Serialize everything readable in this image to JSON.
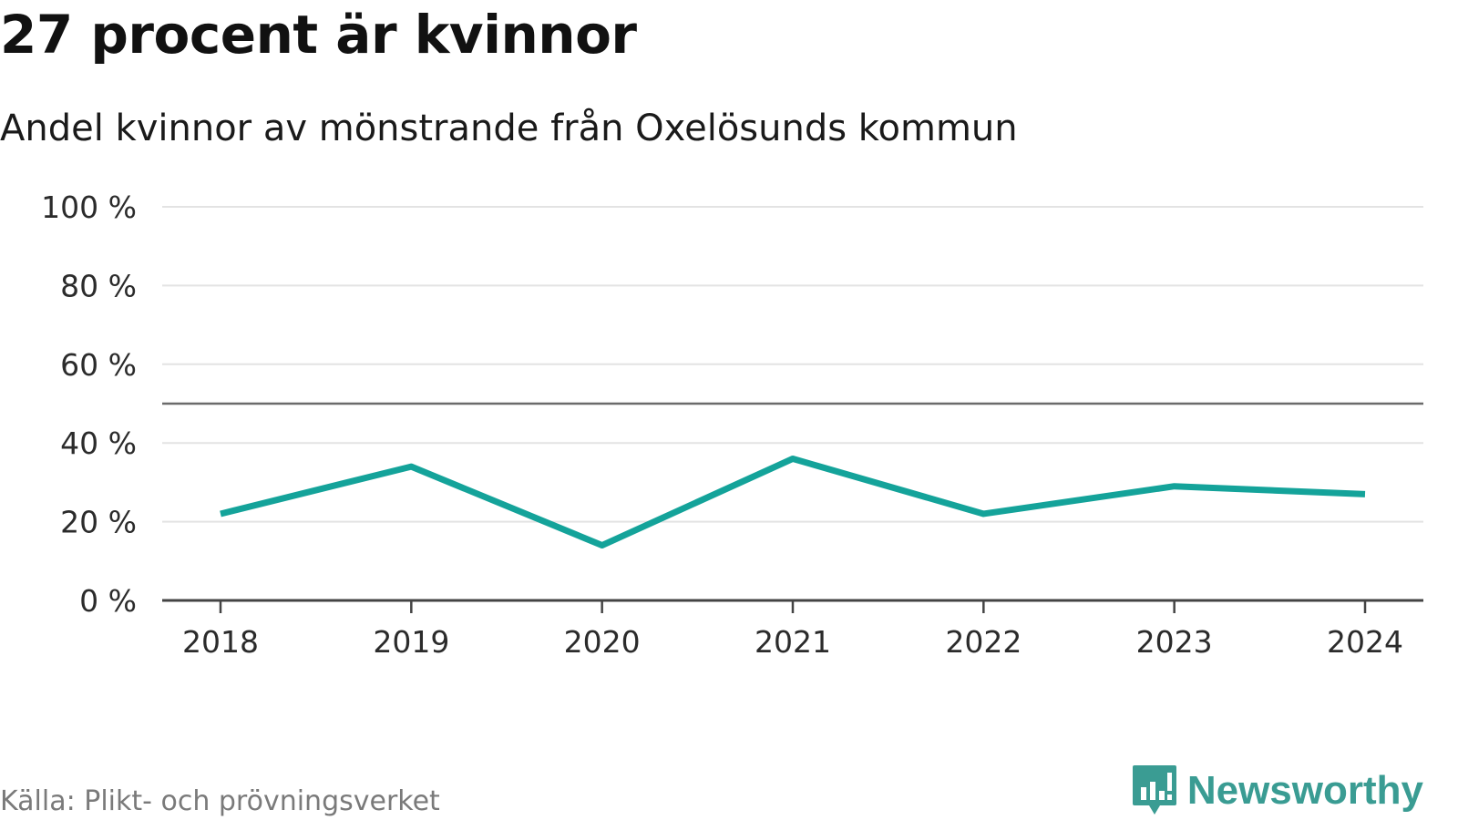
{
  "title": "27 procent är kvinnor",
  "subtitle": "Andel kvinnor av mönstrande från Oxelösunds kommun",
  "source": "Källa: Plikt- och prövningsverket",
  "brand": "Newsworthy",
  "colors": {
    "line": "#14a39a",
    "grid": "#e3e3e3",
    "reference": "#6b6b6b",
    "axis": "#444444",
    "brand": "#3a9c93"
  },
  "chart_data": {
    "type": "line",
    "title": "27 procent är kvinnor",
    "subtitle": "Andel kvinnor av mönstrande från Oxelösunds kommun",
    "xlabel": "",
    "ylabel": "",
    "x": [
      "2018",
      "2019",
      "2020",
      "2021",
      "2022",
      "2023",
      "2024"
    ],
    "series": [
      {
        "values": [
          22,
          34,
          14,
          36,
          22,
          29,
          27
        ]
      }
    ],
    "ylim": [
      0,
      100
    ],
    "yticks": [
      0,
      20,
      40,
      60,
      80,
      100
    ],
    "ytick_labels": [
      "0 %",
      "20 %",
      "40 %",
      "60 %",
      "80 %",
      "100 %"
    ],
    "reference_line": 50,
    "grid": true,
    "legend": "none"
  }
}
